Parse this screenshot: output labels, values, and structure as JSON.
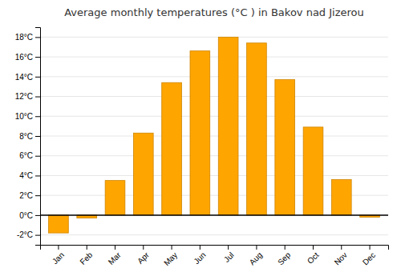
{
  "chart_data": {
    "type": "bar",
    "title": "Average monthly temperatures (°C ) in Bakov nad Jizerou",
    "categories": [
      "Jan",
      "Feb",
      "Mar",
      "Apr",
      "May",
      "Jun",
      "Jul",
      "Aug",
      "Sep",
      "Oct",
      "Nov",
      "Dec"
    ],
    "values": [
      -1.8,
      -0.3,
      3.5,
      8.3,
      13.4,
      16.6,
      18.0,
      17.4,
      13.7,
      8.9,
      3.6,
      -0.2
    ],
    "color": "#FFA500",
    "ylim": [
      -3,
      19
    ],
    "yticks": [
      {
        "value": -2,
        "label": "-2°C"
      },
      {
        "value": 0,
        "label": "0°C"
      },
      {
        "value": 2,
        "label": "2°C"
      },
      {
        "value": 4,
        "label": "4°C"
      },
      {
        "value": 6,
        "label": "6°C"
      },
      {
        "value": 8,
        "label": "8°C"
      },
      {
        "value": 10,
        "label": "10°C"
      },
      {
        "value": 12,
        "label": "12°C"
      },
      {
        "value": 14,
        "label": "14°C"
      },
      {
        "value": 16,
        "label": "16°C"
      },
      {
        "value": 18,
        "label": "18°C"
      }
    ],
    "grid": true
  }
}
